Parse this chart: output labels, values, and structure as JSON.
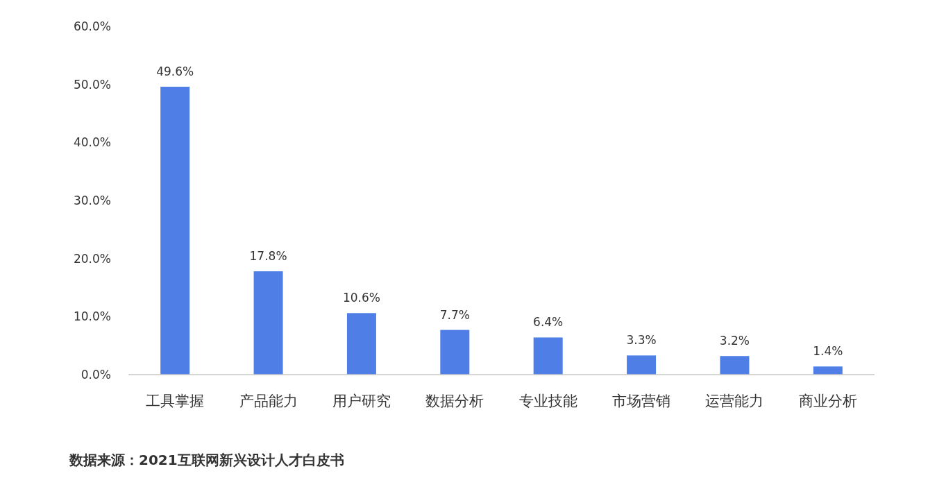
{
  "chart_data": {
    "type": "bar",
    "categories": [
      "工具掌握",
      "产品能力",
      "用户研究",
      "数据分析",
      "专业技能",
      "市场营销",
      "运营能力",
      "商业分析"
    ],
    "values": [
      49.6,
      17.8,
      10.6,
      7.7,
      6.4,
      3.3,
      3.2,
      1.4
    ],
    "value_labels": [
      "49.6%",
      "17.8%",
      "10.6%",
      "7.7%",
      "6.4%",
      "3.3%",
      "3.2%",
      "1.4%"
    ],
    "color": "#4f7fe6",
    "ylim": [
      0,
      60
    ],
    "yticks": [
      {
        "value": 0,
        "label": "0.0%"
      },
      {
        "value": 10,
        "label": "10.0%"
      },
      {
        "value": 20,
        "label": "20.0%"
      },
      {
        "value": 30,
        "label": "30.0%"
      },
      {
        "value": 40,
        "label": "40.0%"
      },
      {
        "value": 50,
        "label": "50.0%"
      },
      {
        "value": 60,
        "label": "60.0%"
      }
    ],
    "grid": false,
    "annotations": [
      "数据来源：2021互联网新兴设计人才白皮书"
    ]
  }
}
